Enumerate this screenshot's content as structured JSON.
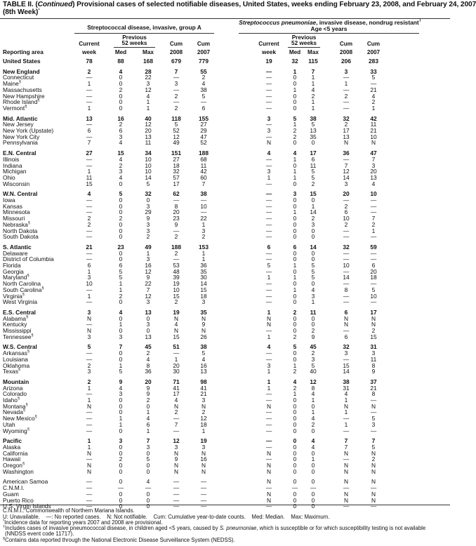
{
  "title": {
    "prefix": "TABLE II. (",
    "continued": "Continued",
    "text": ") Provisional cases of selected notifiable diseases, United States, weeks ending February 23, 2008, and February 24, 2007",
    "line2": "(8th Week)",
    "line2_sup": "*"
  },
  "header": {
    "group_a": "Streptococcal disease, invasive, group A",
    "group_b_italic": "Streptococcus pneumoniae",
    "group_b_rest": ", invasive disease, nondrug resistant",
    "group_b_sup": "†",
    "group_b_line2": "Age <5 years",
    "reporting_area": "Reporting area",
    "current": "Current",
    "week": "week",
    "previous": "Previous",
    "weeks52": "52 weeks",
    "med": "Med",
    "max": "Max",
    "cum": "Cum",
    "y2008": "2008",
    "y2007": "2007"
  },
  "groups": [
    {
      "rows": [
        {
          "name": "United States",
          "bold": true,
          "v": [
            "78",
            "88",
            "168",
            "679",
            "779",
            "19",
            "32",
            "115",
            "206",
            "283"
          ]
        }
      ]
    },
    {
      "rows": [
        {
          "name": "New England",
          "bold": true,
          "v": [
            "2",
            "4",
            "28",
            "7",
            "55",
            "—",
            "1",
            "7",
            "3",
            "33"
          ]
        },
        {
          "name": "Connecticut",
          "v": [
            "—",
            "0",
            "22",
            "—",
            "2",
            "—",
            "0",
            "1",
            "—",
            "5"
          ]
        },
        {
          "name": "Maine",
          "sup": "§",
          "v": [
            "1",
            "0",
            "3",
            "3",
            "4",
            "—",
            "0",
            "1",
            "1",
            "—"
          ]
        },
        {
          "name": "Massachusetts",
          "v": [
            "—",
            "2",
            "12",
            "—",
            "38",
            "—",
            "1",
            "4",
            "—",
            "21"
          ]
        },
        {
          "name": "New Hampshire",
          "v": [
            "—",
            "0",
            "4",
            "2",
            "5",
            "—",
            "0",
            "2",
            "2",
            "4"
          ]
        },
        {
          "name": "Rhode Island",
          "sup": "§",
          "v": [
            "—",
            "0",
            "1",
            "—",
            "—",
            "—",
            "0",
            "1",
            "—",
            "2"
          ]
        },
        {
          "name": "Vermont",
          "sup": "§",
          "v": [
            "1",
            "0",
            "1",
            "2",
            "6",
            "—",
            "0",
            "1",
            "—",
            "1"
          ]
        }
      ]
    },
    {
      "rows": [
        {
          "name": "Mid. Atlantic",
          "bold": true,
          "v": [
            "13",
            "16",
            "40",
            "118",
            "155",
            "3",
            "5",
            "38",
            "32",
            "42"
          ]
        },
        {
          "name": "New Jersey",
          "v": [
            "—",
            "2",
            "12",
            "5",
            "27",
            "—",
            "1",
            "5",
            "2",
            "11"
          ]
        },
        {
          "name": "New York (Upstate)",
          "v": [
            "6",
            "6",
            "20",
            "52",
            "29",
            "3",
            "2",
            "13",
            "17",
            "21"
          ]
        },
        {
          "name": "New York City",
          "v": [
            "—",
            "3",
            "13",
            "12",
            "47",
            "—",
            "2",
            "35",
            "13",
            "10"
          ]
        },
        {
          "name": "Pennsylvania",
          "v": [
            "7",
            "4",
            "11",
            "49",
            "52",
            "N",
            "0",
            "0",
            "N",
            "N"
          ]
        }
      ]
    },
    {
      "rows": [
        {
          "name": "E.N. Central",
          "bold": true,
          "v": [
            "27",
            "15",
            "34",
            "151",
            "188",
            "4",
            "4",
            "17",
            "36",
            "47"
          ]
        },
        {
          "name": "Illinois",
          "v": [
            "—",
            "4",
            "10",
            "27",
            "68",
            "—",
            "1",
            "6",
            "—",
            "7"
          ]
        },
        {
          "name": "Indiana",
          "v": [
            "—",
            "2",
            "10",
            "18",
            "11",
            "—",
            "0",
            "11",
            "7",
            "3"
          ]
        },
        {
          "name": "Michigan",
          "v": [
            "1",
            "3",
            "10",
            "32",
            "42",
            "3",
            "1",
            "5",
            "12",
            "20"
          ]
        },
        {
          "name": "Ohio",
          "v": [
            "11",
            "4",
            "14",
            "57",
            "60",
            "1",
            "1",
            "5",
            "14",
            "13"
          ]
        },
        {
          "name": "Wisconsin",
          "v": [
            "15",
            "0",
            "5",
            "17",
            "7",
            "—",
            "0",
            "2",
            "3",
            "4"
          ]
        }
      ]
    },
    {
      "rows": [
        {
          "name": "W.N. Central",
          "bold": true,
          "v": [
            "4",
            "5",
            "32",
            "62",
            "38",
            "—",
            "3",
            "15",
            "20",
            "10"
          ]
        },
        {
          "name": "Iowa",
          "v": [
            "—",
            "0",
            "0",
            "—",
            "—",
            "—",
            "0",
            "0",
            "—",
            "—"
          ]
        },
        {
          "name": "Kansas",
          "v": [
            "—",
            "0",
            "3",
            "8",
            "10",
            "—",
            "0",
            "1",
            "2",
            "—"
          ]
        },
        {
          "name": "Minnesota",
          "v": [
            "—",
            "0",
            "29",
            "20",
            "—",
            "—",
            "1",
            "14",
            "6",
            "—"
          ]
        },
        {
          "name": "Missouri",
          "v": [
            "2",
            "2",
            "9",
            "23",
            "22",
            "—",
            "0",
            "2",
            "10",
            "7"
          ]
        },
        {
          "name": "Nebraska",
          "sup": "§",
          "v": [
            "2",
            "0",
            "3",
            "9",
            "1",
            "—",
            "0",
            "3",
            "2",
            "2"
          ]
        },
        {
          "name": "North Dakota",
          "v": [
            "—",
            "0",
            "3",
            "—",
            "3",
            "—",
            "0",
            "0",
            "—",
            "1"
          ]
        },
        {
          "name": "South Dakota",
          "v": [
            "—",
            "0",
            "2",
            "2",
            "2",
            "—",
            "0",
            "0",
            "—",
            "—"
          ]
        }
      ]
    },
    {
      "rows": [
        {
          "name": "S. Atlantic",
          "bold": true,
          "v": [
            "21",
            "23",
            "49",
            "188",
            "153",
            "6",
            "6",
            "14",
            "32",
            "59"
          ]
        },
        {
          "name": "Delaware",
          "v": [
            "—",
            "0",
            "1",
            "2",
            "1",
            "—",
            "0",
            "0",
            "—",
            "—"
          ]
        },
        {
          "name": "District of Columbia",
          "v": [
            "—",
            "0",
            "3",
            "—",
            "1",
            "—",
            "0",
            "0",
            "—",
            "—"
          ]
        },
        {
          "name": "Florida",
          "v": [
            "6",
            "6",
            "16",
            "53",
            "36",
            "5",
            "1",
            "5",
            "10",
            "6"
          ]
        },
        {
          "name": "Georgia",
          "v": [
            "1",
            "5",
            "12",
            "48",
            "35",
            "—",
            "0",
            "5",
            "—",
            "20"
          ]
        },
        {
          "name": "Maryland",
          "sup": "§",
          "v": [
            "3",
            "5",
            "9",
            "39",
            "30",
            "1",
            "1",
            "5",
            "14",
            "18"
          ]
        },
        {
          "name": "North Carolina",
          "v": [
            "10",
            "1",
            "22",
            "19",
            "14",
            "—",
            "0",
            "0",
            "—",
            "—"
          ]
        },
        {
          "name": "South Carolina",
          "sup": "§",
          "v": [
            "—",
            "1",
            "7",
            "10",
            "15",
            "—",
            "1",
            "4",
            "8",
            "5"
          ]
        },
        {
          "name": "Virginia",
          "sup": "§",
          "v": [
            "1",
            "2",
            "12",
            "15",
            "18",
            "—",
            "0",
            "3",
            "—",
            "10"
          ]
        },
        {
          "name": "West Virginia",
          "v": [
            "—",
            "0",
            "3",
            "2",
            "3",
            "—",
            "0",
            "1",
            "—",
            "—"
          ]
        }
      ]
    },
    {
      "rows": [
        {
          "name": "E.S. Central",
          "bold": true,
          "v": [
            "3",
            "4",
            "13",
            "19",
            "35",
            "1",
            "2",
            "11",
            "6",
            "17"
          ]
        },
        {
          "name": "Alabama",
          "sup": "§",
          "v": [
            "N",
            "0",
            "0",
            "N",
            "N",
            "N",
            "0",
            "0",
            "N",
            "N"
          ]
        },
        {
          "name": "Kentucky",
          "v": [
            "—",
            "1",
            "3",
            "4",
            "9",
            "N",
            "0",
            "0",
            "N",
            "N"
          ]
        },
        {
          "name": "Mississippi",
          "v": [
            "N",
            "0",
            "0",
            "N",
            "N",
            "—",
            "0",
            "2",
            "—",
            "2"
          ]
        },
        {
          "name": "Tennessee",
          "sup": "§",
          "v": [
            "3",
            "3",
            "13",
            "15",
            "26",
            "1",
            "2",
            "9",
            "6",
            "15"
          ]
        }
      ]
    },
    {
      "rows": [
        {
          "name": "W.S. Central",
          "bold": true,
          "v": [
            "5",
            "7",
            "45",
            "51",
            "38",
            "4",
            "5",
            "45",
            "32",
            "31"
          ]
        },
        {
          "name": "Arkansas",
          "sup": "§",
          "v": [
            "—",
            "0",
            "2",
            "—",
            "5",
            "—",
            "0",
            "2",
            "3",
            "3"
          ]
        },
        {
          "name": "Louisiana",
          "v": [
            "—",
            "0",
            "4",
            "1",
            "4",
            "—",
            "0",
            "3",
            "—",
            "11"
          ]
        },
        {
          "name": "Oklahoma",
          "v": [
            "2",
            "1",
            "8",
            "20",
            "16",
            "3",
            "1",
            "5",
            "15",
            "8"
          ]
        },
        {
          "name": "Texas",
          "sup": "§",
          "v": [
            "3",
            "5",
            "36",
            "30",
            "13",
            "1",
            "2",
            "40",
            "14",
            "9"
          ]
        }
      ]
    },
    {
      "rows": [
        {
          "name": "Mountain",
          "bold": true,
          "v": [
            "2",
            "9",
            "20",
            "71",
            "98",
            "1",
            "4",
            "12",
            "38",
            "37"
          ]
        },
        {
          "name": "Arizona",
          "v": [
            "1",
            "4",
            "9",
            "41",
            "41",
            "1",
            "2",
            "8",
            "31",
            "21"
          ]
        },
        {
          "name": "Colorado",
          "v": [
            "—",
            "3",
            "9",
            "17",
            "21",
            "—",
            "1",
            "4",
            "4",
            "8"
          ]
        },
        {
          "name": "Idaho",
          "sup": "§",
          "v": [
            "1",
            "0",
            "2",
            "4",
            "3",
            "—",
            "0",
            "1",
            "1",
            "—"
          ]
        },
        {
          "name": "Montana",
          "sup": "§",
          "v": [
            "N",
            "0",
            "0",
            "N",
            "N",
            "N",
            "0",
            "0",
            "N",
            "N"
          ]
        },
        {
          "name": "Nevada",
          "sup": "§",
          "v": [
            "—",
            "0",
            "1",
            "2",
            "2",
            "—",
            "0",
            "1",
            "1",
            "—"
          ]
        },
        {
          "name": "New Mexico",
          "sup": "§",
          "v": [
            "—",
            "1",
            "4",
            "—",
            "12",
            "—",
            "0",
            "4",
            "—",
            "5"
          ]
        },
        {
          "name": "Utah",
          "v": [
            "—",
            "1",
            "6",
            "7",
            "18",
            "—",
            "0",
            "2",
            "1",
            "3"
          ]
        },
        {
          "name": "Wyoming",
          "sup": "§",
          "v": [
            "—",
            "0",
            "1",
            "—",
            "1",
            "—",
            "0",
            "0",
            "—",
            "—"
          ]
        }
      ]
    },
    {
      "rows": [
        {
          "name": "Pacific",
          "bold": true,
          "v": [
            "1",
            "3",
            "7",
            "12",
            "19",
            "—",
            "0",
            "4",
            "7",
            "7"
          ]
        },
        {
          "name": "Alaska",
          "v": [
            "1",
            "0",
            "3",
            "3",
            "3",
            "—",
            "0",
            "4",
            "7",
            "5"
          ]
        },
        {
          "name": "California",
          "v": [
            "N",
            "0",
            "0",
            "N",
            "N",
            "N",
            "0",
            "0",
            "N",
            "N"
          ]
        },
        {
          "name": "Hawaii",
          "v": [
            "—",
            "2",
            "5",
            "9",
            "16",
            "—",
            "0",
            "1",
            "—",
            "2"
          ]
        },
        {
          "name": "Oregon",
          "sup": "§",
          "v": [
            "N",
            "0",
            "0",
            "N",
            "N",
            "N",
            "0",
            "0",
            "N",
            "N"
          ]
        },
        {
          "name": "Washington",
          "v": [
            "N",
            "0",
            "0",
            "N",
            "N",
            "N",
            "0",
            "0",
            "N",
            "N"
          ]
        }
      ]
    },
    {
      "rows": [
        {
          "name": "American Samoa",
          "v": [
            "—",
            "0",
            "4",
            "—",
            "—",
            "N",
            "0",
            "0",
            "N",
            "N"
          ]
        },
        {
          "name": "C.N.M.I.",
          "v": [
            "—",
            "—",
            "—",
            "—",
            "—",
            "—",
            "—",
            "—",
            "—",
            "—"
          ]
        },
        {
          "name": "Guam",
          "v": [
            "—",
            "0",
            "0",
            "—",
            "—",
            "N",
            "0",
            "0",
            "N",
            "N"
          ]
        },
        {
          "name": "Puerto Rico",
          "v": [
            "—",
            "0",
            "0",
            "—",
            "—",
            "N",
            "0",
            "0",
            "N",
            "N"
          ]
        },
        {
          "name": "U.S. Virgin Islands",
          "v": [
            "—",
            "0",
            "0",
            "—",
            "—",
            "—",
            "0",
            "0",
            "—",
            "—"
          ]
        }
      ]
    }
  ],
  "footnotes": {
    "cnmi": "C.N.M.I.: Commonwealth of Northern Mariana Islands.",
    "legend": "U: Unavailable.    —: No reported cases.    N: Not notifiable.    Cum: Cumulative year-to-date counts.    Med: Median.    Max: Maximum.",
    "star_mark": "*",
    "star": "Incidence data for reporting years 2007 and 2008 are provisional.",
    "dagger_mark": "†",
    "dagger_a": "Includes cases of invasive pneumococcal disease, in children aged <5 years, caused by ",
    "dagger_italic": "S. pneumoniae",
    "dagger_b": ", which is susceptible or for which susceptibility testing is not available",
    "dagger_line2": "(NNDSS event code 11717).",
    "section_mark": "§",
    "section": "Contains data reported through the National Electronic Disease Surveillance System (NEDSS)."
  }
}
